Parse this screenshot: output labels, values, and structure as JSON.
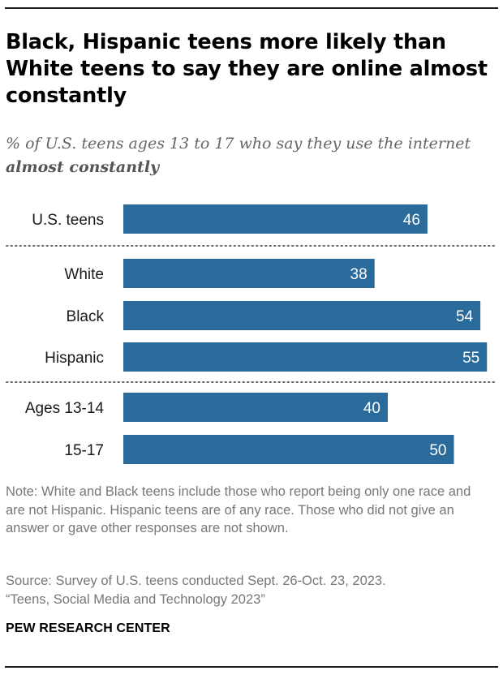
{
  "title": "Black, Hispanic teens more likely than White teens to say they are online almost constantly",
  "subtitle_prefix": "% of U.S. teens ages 13 to 17 who say they use the internet ",
  "subtitle_emphasis": "almost constantly",
  "note": "Note: White and Black teens include those who report being only one race and are not Hispanic. Hispanic teens are of any race. Those who did not give an answer or gave other responses are not shown.",
  "source_line1": "Source: Survey of U.S. teens conducted Sept. 26-Oct. 23, 2023.",
  "source_line2": "“Teens, Social Media and Technology 2023”",
  "credit": "PEW RESEARCH CENTER",
  "chart_data": {
    "type": "bar",
    "orientation": "horizontal",
    "categories": [
      "U.S. teens",
      "White",
      "Black",
      "Hispanic",
      "Ages 13-14",
      "15-17"
    ],
    "values": [
      46,
      38,
      54,
      55,
      40,
      50
    ],
    "groups": [
      [
        "U.S. teens"
      ],
      [
        "White",
        "Black",
        "Hispanic"
      ],
      [
        "Ages 13-14",
        "15-17"
      ]
    ],
    "xlim": [
      0,
      100
    ],
    "bar_color": "#2a6b9c",
    "value_label_color": "#ffffff",
    "separator_style": "dotted",
    "grid": false
  }
}
